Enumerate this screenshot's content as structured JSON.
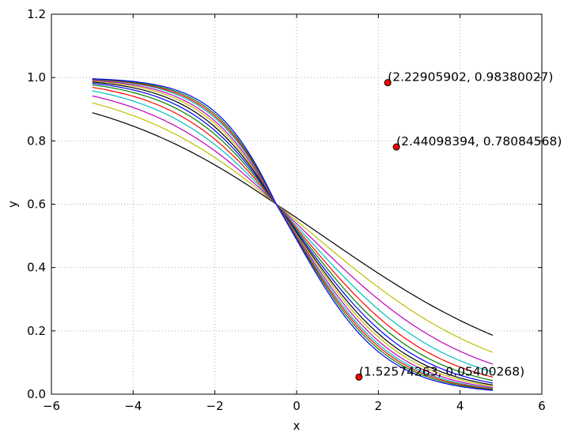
{
  "chart_data": {
    "type": "line",
    "title": "",
    "xlabel": "x",
    "ylabel": "y",
    "xlim": [
      -6,
      6
    ],
    "ylim": [
      0.0,
      1.2
    ],
    "xticks": [
      -6,
      -4,
      -2,
      0,
      2,
      4,
      6
    ],
    "xtick_labels": [
      "−6",
      "−4",
      "−2",
      "0",
      "2",
      "4",
      "6"
    ],
    "yticks": [
      0.0,
      0.2,
      0.4,
      0.6,
      0.8,
      1.0,
      1.2
    ],
    "ytick_labels": [
      "0.0",
      "0.2",
      "0.4",
      "0.6",
      "0.8",
      "1.0",
      "1.2"
    ],
    "grid": true,
    "x_range": [
      -5.0,
      4.8
    ],
    "series": [
      {
        "color": "#000000",
        "y_start": 0.889,
        "y_end": 0.186
      },
      {
        "color": "#bfbf00",
        "y_start": 0.92,
        "y_end": 0.132
      },
      {
        "color": "#bf00bf",
        "y_start": 0.942,
        "y_end": 0.095
      },
      {
        "color": "#00bfbf",
        "y_start": 0.958,
        "y_end": 0.07
      },
      {
        "color": "#ff0000",
        "y_start": 0.969,
        "y_end": 0.054
      },
      {
        "color": "#008000",
        "y_start": 0.977,
        "y_end": 0.043
      },
      {
        "color": "#0000ff",
        "y_start": 0.982,
        "y_end": 0.035
      },
      {
        "color": "#000000",
        "y_start": 0.986,
        "y_end": 0.029
      },
      {
        "color": "#bfbf00",
        "y_start": 0.989,
        "y_end": 0.025
      },
      {
        "color": "#bf00bf",
        "y_start": 0.991,
        "y_end": 0.021
      },
      {
        "color": "#00bfbf",
        "y_start": 0.993,
        "y_end": 0.018
      },
      {
        "color": "#ff0000",
        "y_start": 0.994,
        "y_end": 0.016
      },
      {
        "color": "#008000",
        "y_start": 0.995,
        "y_end": 0.014
      },
      {
        "color": "#0000ff",
        "y_start": 0.996,
        "y_end": 0.012
      }
    ],
    "points": [
      {
        "x": 2.22905902,
        "y": 0.98380027,
        "label": "(2.22905902, 0.98380027)"
      },
      {
        "x": 2.44098394,
        "y": 0.78084568,
        "label": "(2.44098394, 0.78084568)"
      },
      {
        "x": 1.52574263,
        "y": 0.05400268,
        "label": "(1.52574263, 0.05400268)"
      }
    ],
    "point_color": "#ff0000"
  }
}
